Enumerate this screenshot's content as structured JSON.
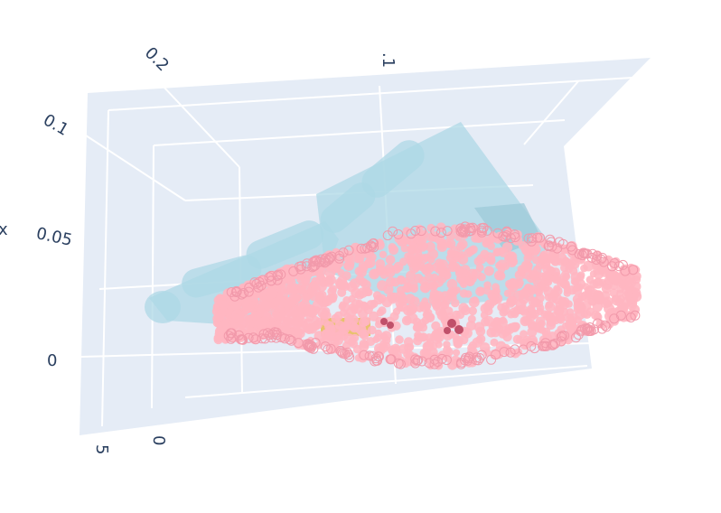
{
  "chart_data": {
    "type": "scatter3d",
    "title": "",
    "axes": {
      "x": {
        "label": "x",
        "tick_labels": [
          "0",
          "0.05",
          "0.1"
        ]
      },
      "y": {
        "label": "",
        "tick_labels": [
          "0.2",
          ".1"
        ]
      },
      "z": {
        "label": "",
        "tick_labels": [
          "5",
          "0"
        ]
      }
    },
    "background_color": "#e5ecf6",
    "grid": true,
    "legend": "none",
    "traces": [
      {
        "kind": "mesh",
        "description_color": "#add8e6"
      },
      {
        "kind": "point-cloud",
        "color": "#ffb6c1"
      },
      {
        "kind": "small-markers",
        "colors": [
          "#00008b",
          "#c0506a",
          "#e8b84a"
        ]
      }
    ]
  }
}
